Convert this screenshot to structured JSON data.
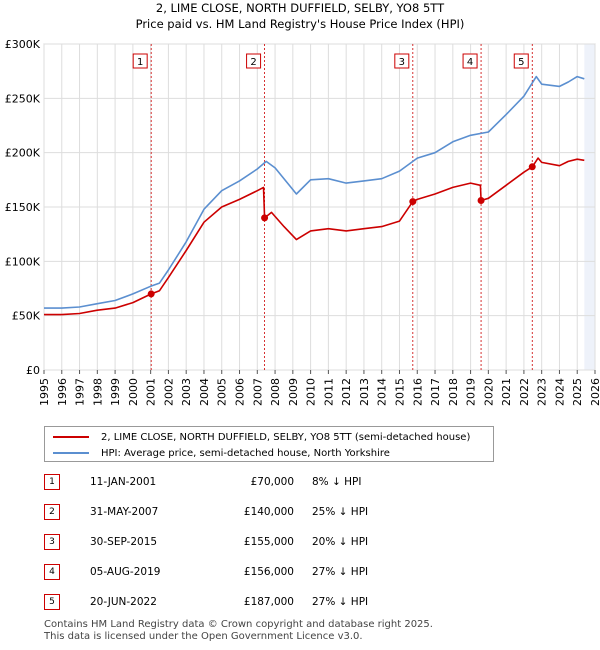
{
  "colors": {
    "property": "#cc0000",
    "hpi": "#5b8fd0",
    "grid": "#dddddd",
    "marker": "#cc0000",
    "band": "#eef2fa"
  },
  "chart_data": {
    "type": "line",
    "title": "2, LIME CLOSE, NORTH DUFFIELD, SELBY, YO8 5TT",
    "subtitle": "Price paid vs. HM Land Registry's House Price Index (HPI)",
    "xlim": [
      1995,
      2026
    ],
    "ylim": [
      0,
      300000
    ],
    "y_ticks": [
      0,
      50000,
      100000,
      150000,
      200000,
      250000,
      300000
    ],
    "y_tick_labels": [
      "£0",
      "£50K",
      "£100K",
      "£150K",
      "£200K",
      "£250K",
      "£300K"
    ],
    "x_ticks": [
      1995,
      1996,
      1997,
      1998,
      1999,
      2000,
      2001,
      2002,
      2003,
      2004,
      2005,
      2006,
      2007,
      2008,
      2009,
      2010,
      2011,
      2012,
      2013,
      2014,
      2015,
      2016,
      2017,
      2018,
      2019,
      2020,
      2021,
      2022,
      2023,
      2024,
      2025,
      2026
    ],
    "series": [
      {
        "name": "HPI: Average price, semi-detached house, North Yorkshire",
        "color": "#5b8fd0",
        "points": [
          [
            1995,
            57000
          ],
          [
            1996,
            57000
          ],
          [
            1997,
            58000
          ],
          [
            1998,
            61000
          ],
          [
            1999,
            64000
          ],
          [
            2000,
            70000
          ],
          [
            2001,
            77000
          ],
          [
            2001.5,
            80000
          ],
          [
            2002,
            92000
          ],
          [
            2003,
            118000
          ],
          [
            2004,
            148000
          ],
          [
            2005,
            165000
          ],
          [
            2006,
            174000
          ],
          [
            2007,
            185000
          ],
          [
            2007.5,
            192000
          ],
          [
            2008,
            186000
          ],
          [
            2008.8,
            170000
          ],
          [
            2009.2,
            162000
          ],
          [
            2010,
            175000
          ],
          [
            2011,
            176000
          ],
          [
            2012,
            172000
          ],
          [
            2013,
            174000
          ],
          [
            2014,
            176000
          ],
          [
            2015,
            183000
          ],
          [
            2016,
            195000
          ],
          [
            2017,
            200000
          ],
          [
            2018,
            210000
          ],
          [
            2019,
            216000
          ],
          [
            2020,
            219000
          ],
          [
            2021,
            235000
          ],
          [
            2022,
            252000
          ],
          [
            2022.7,
            270000
          ],
          [
            2023,
            263000
          ],
          [
            2024,
            261000
          ],
          [
            2024.5,
            265000
          ],
          [
            2025,
            270000
          ],
          [
            2025.4,
            268000
          ]
        ]
      },
      {
        "name": "2, LIME CLOSE, NORTH DUFFIELD, SELBY, YO8 5TT (semi-detached house)",
        "color": "#cc0000",
        "points": [
          [
            1995,
            51000
          ],
          [
            1996,
            51000
          ],
          [
            1997,
            52000
          ],
          [
            1998,
            55000
          ],
          [
            1999,
            57000
          ],
          [
            2000,
            62000
          ],
          [
            2001.03,
            70000
          ],
          [
            2001.5,
            73000
          ],
          [
            2002,
            85000
          ],
          [
            2003,
            110000
          ],
          [
            2004,
            136000
          ],
          [
            2005,
            150000
          ],
          [
            2006,
            157000
          ],
          [
            2007,
            165000
          ],
          [
            2007.35,
            168000
          ],
          [
            2007.41,
            140000
          ],
          [
            2007.8,
            145000
          ],
          [
            2008.5,
            132000
          ],
          [
            2009.2,
            120000
          ],
          [
            2010,
            128000
          ],
          [
            2011,
            130000
          ],
          [
            2012,
            128000
          ],
          [
            2013,
            130000
          ],
          [
            2014,
            132000
          ],
          [
            2015,
            137000
          ],
          [
            2015.75,
            155000
          ],
          [
            2016,
            157000
          ],
          [
            2017,
            162000
          ],
          [
            2018,
            168000
          ],
          [
            2019,
            172000
          ],
          [
            2019.55,
            170000
          ],
          [
            2019.59,
            156000
          ],
          [
            2020,
            158000
          ],
          [
            2021,
            170000
          ],
          [
            2022,
            182000
          ],
          [
            2022.47,
            187000
          ],
          [
            2022.8,
            195000
          ],
          [
            2023,
            191000
          ],
          [
            2024,
            188000
          ],
          [
            2024.5,
            192000
          ],
          [
            2025,
            194000
          ],
          [
            2025.4,
            193000
          ]
        ]
      }
    ],
    "sales": [
      {
        "n": "1",
        "x": 2001.03,
        "price": 70000
      },
      {
        "n": "2",
        "x": 2007.41,
        "price": 140000
      },
      {
        "n": "3",
        "x": 2015.75,
        "price": 155000
      },
      {
        "n": "4",
        "x": 2019.59,
        "price": 156000
      },
      {
        "n": "5",
        "x": 2022.47,
        "price": 187000
      }
    ]
  },
  "legend": {
    "property": "2, LIME CLOSE, NORTH DUFFIELD, SELBY, YO8 5TT (semi-detached house)",
    "hpi": "HPI: Average price, semi-detached house, North Yorkshire"
  },
  "sales_table": [
    {
      "n": "1",
      "date": "11-JAN-2001",
      "price": "£70,000",
      "hpi": "8% ↓ HPI"
    },
    {
      "n": "2",
      "date": "31-MAY-2007",
      "price": "£140,000",
      "hpi": "25% ↓ HPI"
    },
    {
      "n": "3",
      "date": "30-SEP-2015",
      "price": "£155,000",
      "hpi": "20% ↓ HPI"
    },
    {
      "n": "4",
      "date": "05-AUG-2019",
      "price": "£156,000",
      "hpi": "27% ↓ HPI"
    },
    {
      "n": "5",
      "date": "20-JUN-2022",
      "price": "£187,000",
      "hpi": "27% ↓ HPI"
    }
  ],
  "footer": {
    "line1": "Contains HM Land Registry data © Crown copyright and database right 2025.",
    "line2": "This data is licensed under the Open Government Licence v3.0."
  }
}
